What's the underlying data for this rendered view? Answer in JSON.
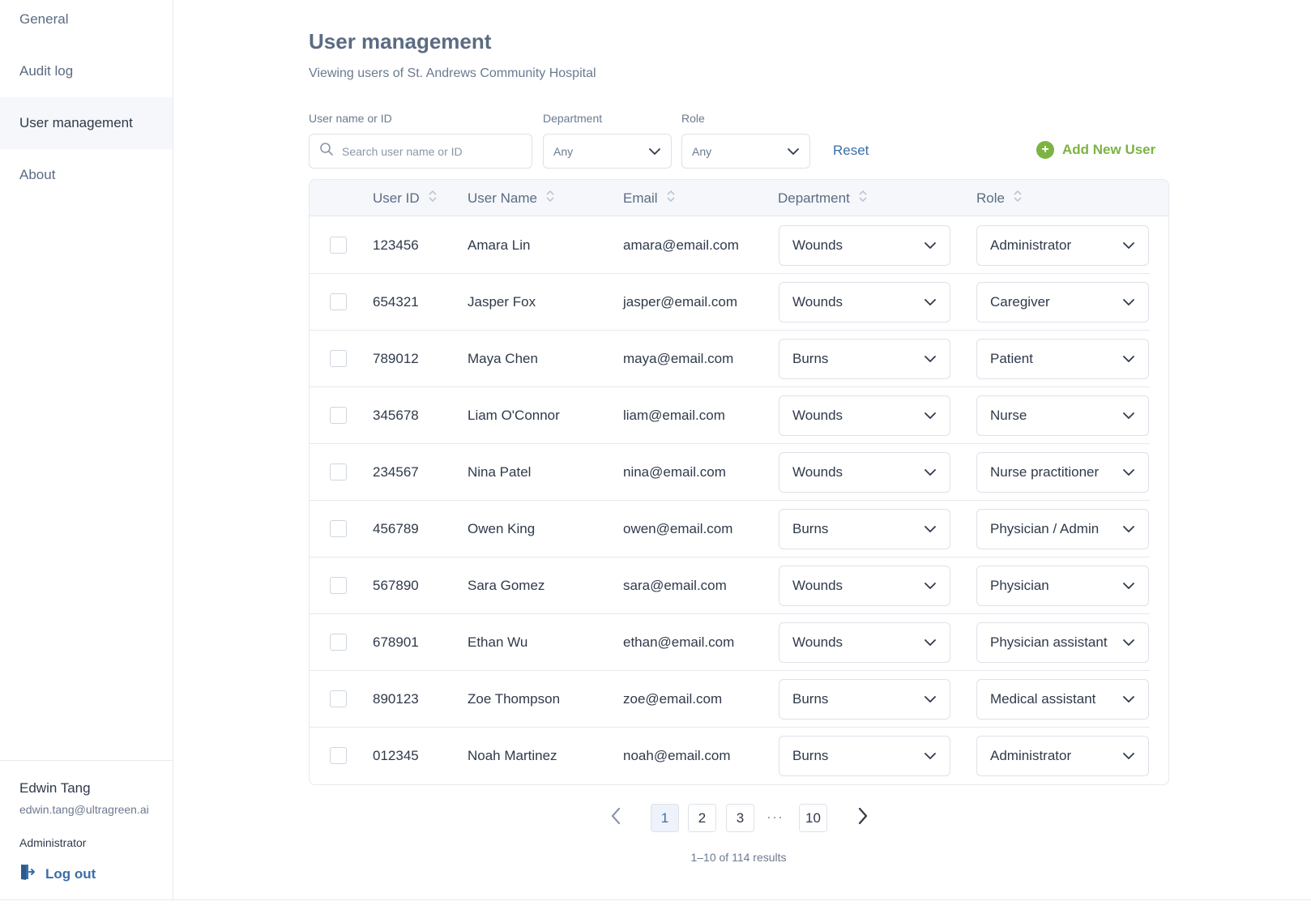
{
  "sidebar": {
    "nav": [
      {
        "label": "General",
        "active": false
      },
      {
        "label": "Audit log",
        "active": false
      },
      {
        "label": "User management",
        "active": true
      },
      {
        "label": "About",
        "active": false
      }
    ],
    "user": {
      "name": "Edwin Tang",
      "email": "edwin.tang@ultragreen.ai",
      "role": "Administrator"
    },
    "logout_label": "Log out"
  },
  "header": {
    "title": "User management",
    "subtitle": "Viewing users of St. Andrews Community Hospital"
  },
  "filters": {
    "search_label": "User name or ID",
    "search_placeholder": "Search user name or ID",
    "department_label": "Department",
    "department_value": "Any",
    "role_label": "Role",
    "role_value": "Any",
    "reset_label": "Reset",
    "add_user_label": "Add New User"
  },
  "table": {
    "columns": [
      "User ID",
      "User Name",
      "Email",
      "Department",
      "Role"
    ],
    "rows": [
      {
        "id": "123456",
        "name": "Amara Lin",
        "email": "amara@email.com",
        "department": "Wounds",
        "role": "Administrator"
      },
      {
        "id": "654321",
        "name": "Jasper Fox",
        "email": "jasper@email.com",
        "department": "Wounds",
        "role": "Caregiver"
      },
      {
        "id": "789012",
        "name": "Maya Chen",
        "email": "maya@email.com",
        "department": "Burns",
        "role": "Patient"
      },
      {
        "id": "345678",
        "name": "Liam O'Connor",
        "email": "liam@email.com",
        "department": "Wounds",
        "role": "Nurse"
      },
      {
        "id": "234567",
        "name": "Nina Patel",
        "email": "nina@email.com",
        "department": "Wounds",
        "role": "Nurse practitioner"
      },
      {
        "id": "456789",
        "name": "Owen King",
        "email": "owen@email.com",
        "department": "Burns",
        "role": "Physician / Admin"
      },
      {
        "id": "567890",
        "name": "Sara Gomez",
        "email": "sara@email.com",
        "department": "Wounds",
        "role": "Physician"
      },
      {
        "id": "678901",
        "name": "Ethan Wu",
        "email": "ethan@email.com",
        "department": "Wounds",
        "role": "Physician assistant"
      },
      {
        "id": "890123",
        "name": "Zoe Thompson",
        "email": "zoe@email.com",
        "department": "Burns",
        "role": "Medical assistant"
      },
      {
        "id": "012345",
        "name": "Noah Martinez",
        "email": "noah@email.com",
        "department": "Burns",
        "role": "Administrator"
      }
    ]
  },
  "pagination": {
    "pages": [
      "1",
      "2",
      "3",
      "10"
    ],
    "current": "1",
    "ellipsis": "···",
    "results_text": "1–10 of 114 results"
  },
  "colors": {
    "accent": "#3a6ea8",
    "add_green": "#7cb342"
  }
}
